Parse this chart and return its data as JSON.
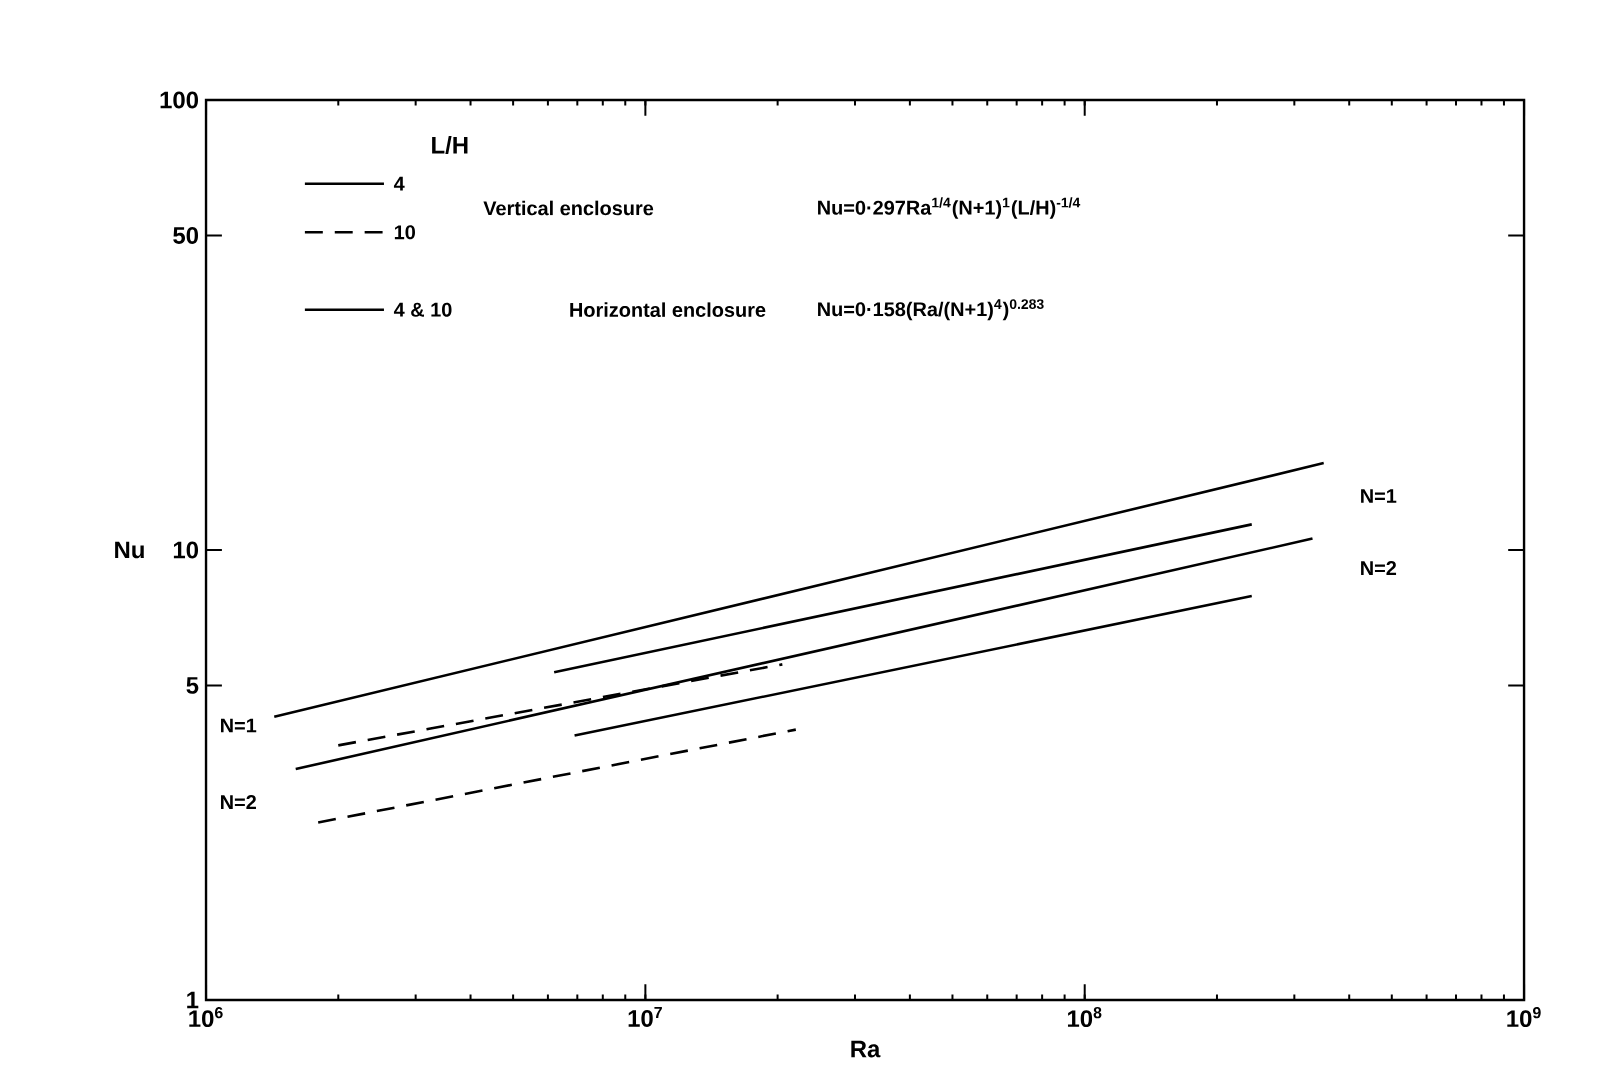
{
  "chart_data": {
    "type": "line",
    "xlabel": "Ra",
    "ylabel": "Nu",
    "log": "xy",
    "legend": "top left",
    "legend_title": "L/H",
    "grid": false,
    "xlim": [
      1000000,
      1000000000
    ],
    "ylim": [
      1,
      100
    ],
    "xticks": [
      {
        "value": 1000000,
        "label": "10$^{6}$"
      },
      {
        "value": 10000000,
        "label": "10$^{7}$"
      },
      {
        "value": 100000000,
        "label": "10$^{8}$"
      },
      {
        "value": 1000000000,
        "label": "10$^{9}$"
      }
    ],
    "yticks": [
      1,
      5,
      10,
      50,
      100
    ],
    "series": [
      {
        "name": "4",
        "color": "#000000",
        "line_style": "solid",
        "x": [
          6200000,
          240000000
        ],
        "values": [
          5.35,
          11.4
        ]
      },
      {
        "color": "#000000",
        "line_style": "solid",
        "x": [
          6900000,
          240000000
        ],
        "values": [
          3.87,
          7.9
        ]
      },
      {
        "name": "10",
        "color": "#000000",
        "line_style": "dashed",
        "x": [
          2000000,
          20500000
        ],
        "values": [
          3.68,
          5.57
        ]
      },
      {
        "color": "#000000",
        "line_style": "dashed",
        "x": [
          1800000,
          22000000
        ],
        "values": [
          2.48,
          3.99
        ]
      },
      {
        "name": "4 & 10",
        "color": "#000000",
        "line_style": "solid",
        "x": [
          1430000,
          350000000
        ],
        "values": [
          4.26,
          15.6
        ]
      },
      {
        "color": "#000000",
        "line_style": "solid",
        "x": [
          1600000,
          330000000
        ],
        "values": [
          3.26,
          10.6
        ]
      }
    ],
    "annotations": [
      "Vertical enclosure",
      "Nu=0·297Ra$^{1/4}$(N+1)$^{1}$(L/H)$^{-1/4}$",
      "Horizontal enclosure",
      "Nu=0·158(Ra/(N+1)$^{4}$)$^{0.283}$",
      "N=1",
      "N=2",
      "N=1",
      "N=2"
    ]
  }
}
